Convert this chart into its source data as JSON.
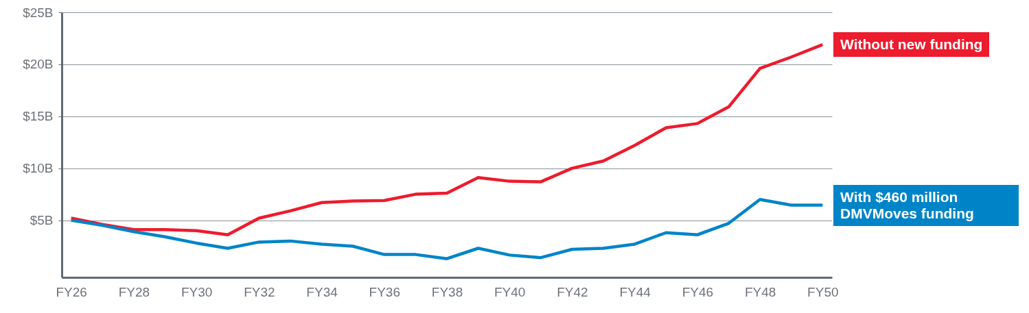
{
  "chart_data": {
    "type": "line",
    "categories": [
      "FY26",
      null,
      "FY28",
      null,
      "FY30",
      null,
      "FY32",
      null,
      "FY34",
      null,
      "FY36",
      null,
      "FY38",
      null,
      "FY40",
      null,
      "FY42",
      null,
      "FY44",
      null,
      "FY46",
      null,
      "FY48",
      null,
      "FY50"
    ],
    "series": [
      {
        "name": "Without new funding",
        "color": "#ed1c2e",
        "values": [
          5.2,
          4.6,
          4.1,
          4.1,
          4.0,
          3.6,
          5.2,
          5.9,
          6.7,
          6.85,
          6.9,
          7.5,
          7.6,
          9.1,
          8.75,
          8.7,
          10.0,
          10.7,
          12.2,
          13.9,
          14.3,
          15.9,
          19.6,
          20.7,
          21.9
        ]
      },
      {
        "name": "With $460 million DMVMoves funding",
        "color": "#0084c8",
        "values": [
          5.0,
          4.5,
          3.9,
          3.4,
          2.8,
          2.3,
          2.9,
          3.0,
          2.7,
          2.5,
          1.7,
          1.7,
          1.3,
          2.3,
          1.65,
          1.4,
          2.2,
          2.3,
          2.7,
          3.8,
          3.6,
          4.7,
          7.0,
          6.45,
          6.45
        ]
      }
    ],
    "ylim": [
      -0.5,
      25
    ],
    "yticks": [
      {
        "value": 5,
        "label": "$5B"
      },
      {
        "value": 10,
        "label": "$10B"
      },
      {
        "value": 15,
        "label": "$15B"
      },
      {
        "value": 20,
        "label": "$20B"
      },
      {
        "value": 25,
        "label": "$25B"
      }
    ],
    "grid": "y"
  }
}
